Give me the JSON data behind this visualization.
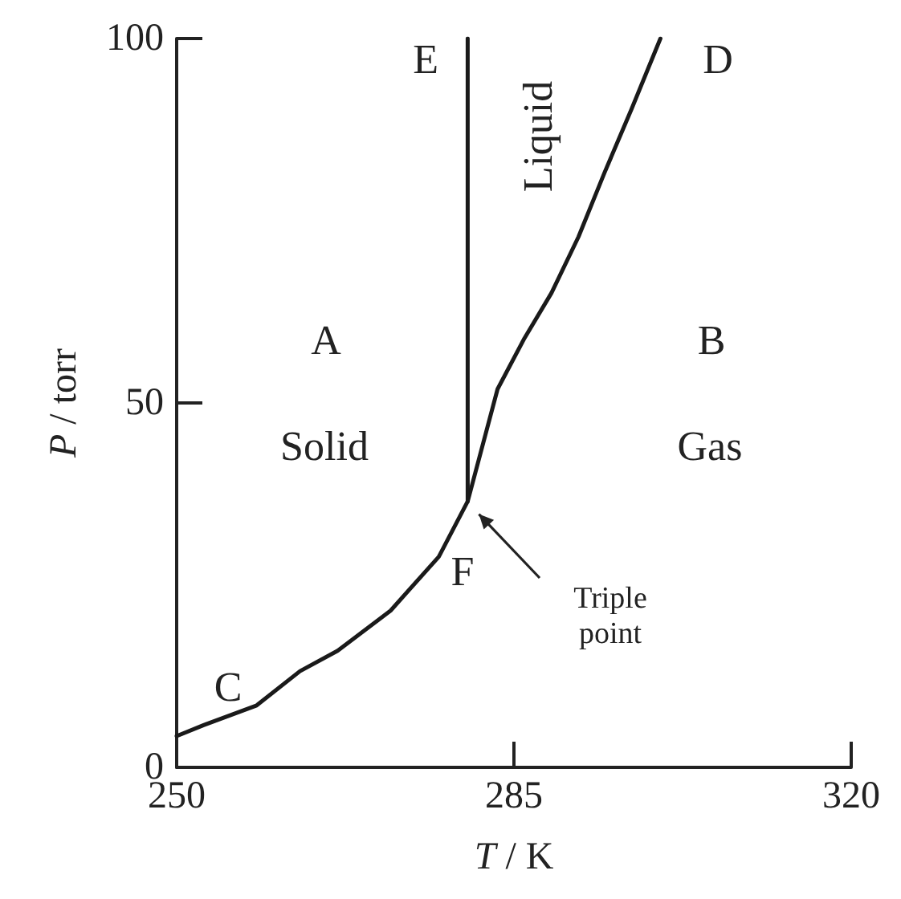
{
  "chart_data": {
    "type": "line",
    "xlabel": "T / K",
    "ylabel": "P / torr",
    "xlim": [
      250,
      320
    ],
    "xticks": [
      250,
      285,
      320
    ],
    "ylim": [
      0,
      100
    ],
    "yticks": [
      0,
      50,
      100
    ],
    "grid": false,
    "marker": "none",
    "line_style": "solid",
    "series": [
      {
        "color": "#1a1a1a",
        "x": [
          250,
          252.8,
          258.3,
          262.8,
          266.7,
          272.2,
          277.2,
          280.2,
          283.3,
          286.1,
          288.9,
          291.7,
          294.4,
          297.2,
          300.2
        ],
        "values": [
          4.3,
          5.8,
          8.5,
          13.2,
          16,
          21.5,
          28.9,
          36.5,
          51.9,
          58.9,
          65.1,
          72.8,
          81.6,
          90.3,
          100
        ]
      },
      {
        "color": "#1a1a1a",
        "x": [
          280.2,
          280.2
        ],
        "values": [
          36.5,
          100
        ]
      }
    ],
    "annotations": [
      "E",
      "D",
      "Liquid",
      "A",
      "B",
      "Solid",
      "Gas",
      "F",
      "C",
      "Triple\npoint"
    ]
  }
}
